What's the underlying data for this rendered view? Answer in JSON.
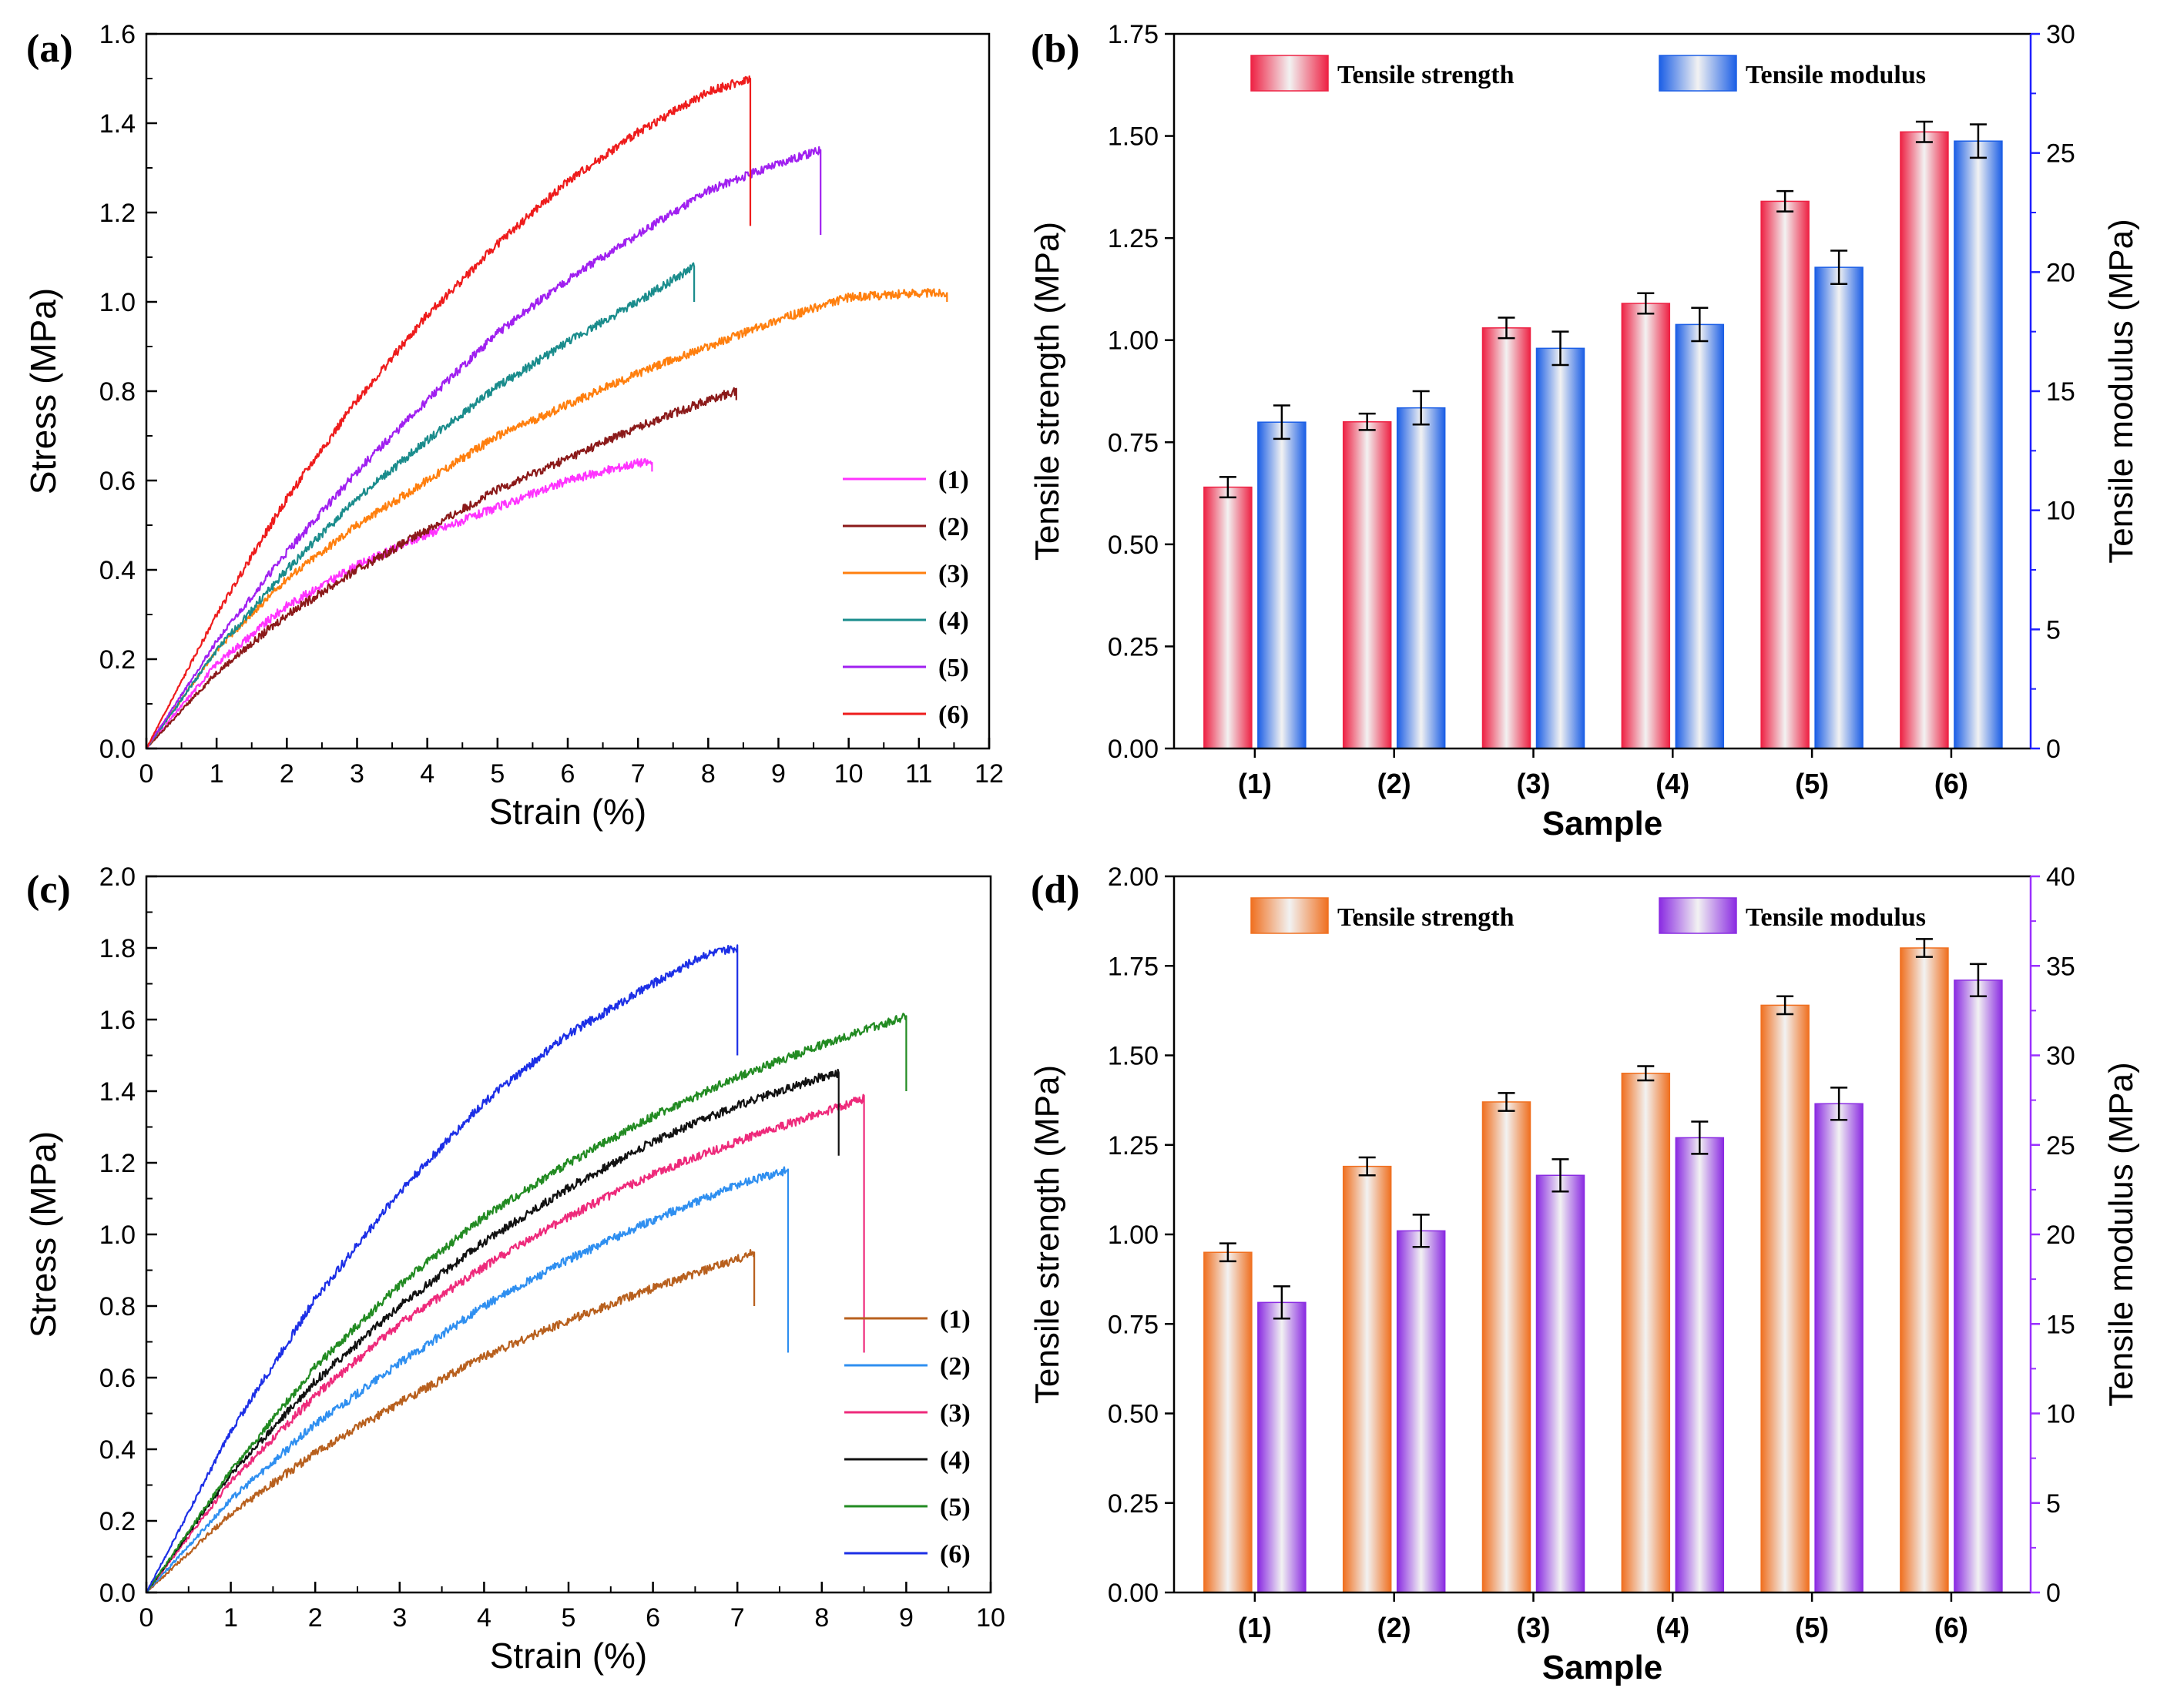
{
  "colors": {
    "axis": "#000000",
    "right_axis_b": "#1f1fff",
    "right_axis_d": "#9b30ff",
    "a_series": [
      "#ff33ff",
      "#8b1a1a",
      "#ff7f0e",
      "#1a8c8c",
      "#a020f0",
      "#ee1c1c"
    ],
    "c_series": [
      "#b8601e",
      "#2f8ff0",
      "#ee2a7b",
      "#111111",
      "#228b22",
      "#1c2fe6"
    ],
    "b_bar1": "#ee2244",
    "b_bar2": "#1c5fe6",
    "d_bar1": "#f07020",
    "d_bar2": "#8a2be2"
  },
  "chart_data": [
    {
      "id": "a",
      "panel_label": "(a)",
      "type": "line",
      "xlabel": "Strain (%)",
      "ylabel": "Stress (MPa)",
      "xlim": [
        0,
        12
      ],
      "ylim": [
        0,
        1.6
      ],
      "xticks": [
        "0",
        "1",
        "2",
        "3",
        "4",
        "5",
        "6",
        "7",
        "8",
        "9",
        "10",
        "11",
        "12"
      ],
      "yticks": [
        "0.0",
        "0.2",
        "0.4",
        "0.6",
        "0.8",
        "1.0",
        "1.2",
        "1.4",
        "1.6"
      ],
      "legend": [
        "(1)",
        "(2)",
        "(3)",
        "(4)",
        "(5)",
        "(6)"
      ],
      "series": [
        {
          "name": "(1)",
          "points": [
            [
              0,
              0
            ],
            [
              1,
              0.19
            ],
            [
              2,
              0.32
            ],
            [
              3,
              0.41
            ],
            [
              4,
              0.48
            ],
            [
              5,
              0.54
            ],
            [
              6,
              0.6
            ],
            [
              7,
              0.64
            ],
            [
              7.2,
              0.64
            ]
          ],
          "drop": 0.62
        },
        {
          "name": "(2)",
          "points": [
            [
              0,
              0
            ],
            [
              1,
              0.17
            ],
            [
              2,
              0.3
            ],
            [
              3,
              0.4
            ],
            [
              4,
              0.49
            ],
            [
              5,
              0.58
            ],
            [
              6,
              0.65
            ],
            [
              7,
              0.72
            ],
            [
              8,
              0.78
            ],
            [
              8.4,
              0.8
            ]
          ],
          "drop": 0.78
        },
        {
          "name": "(3)",
          "points": [
            [
              0,
              0
            ],
            [
              1,
              0.22
            ],
            [
              2,
              0.38
            ],
            [
              3,
              0.5
            ],
            [
              4,
              0.6
            ],
            [
              5,
              0.7
            ],
            [
              6,
              0.77
            ],
            [
              7,
              0.84
            ],
            [
              8,
              0.9
            ],
            [
              9,
              0.96
            ],
            [
              10,
              1.01
            ],
            [
              11,
              1.02
            ],
            [
              11.4,
              1.02
            ]
          ],
          "drop": 1.0
        },
        {
          "name": "(4)",
          "points": [
            [
              0,
              0
            ],
            [
              1,
              0.22
            ],
            [
              2,
              0.4
            ],
            [
              3,
              0.56
            ],
            [
              4,
              0.69
            ],
            [
              5,
              0.81
            ],
            [
              6,
              0.91
            ],
            [
              7,
              1.0
            ],
            [
              7.8,
              1.08
            ]
          ],
          "drop": 1.0
        },
        {
          "name": "(5)",
          "points": [
            [
              0,
              0
            ],
            [
              1,
              0.24
            ],
            [
              2,
              0.44
            ],
            [
              3,
              0.62
            ],
            [
              4,
              0.78
            ],
            [
              5,
              0.93
            ],
            [
              6,
              1.05
            ],
            [
              7,
              1.15
            ],
            [
              8,
              1.25
            ],
            [
              9,
              1.31
            ],
            [
              9.6,
              1.34
            ]
          ],
          "drop": 1.15
        },
        {
          "name": "(6)",
          "points": [
            [
              0,
              0
            ],
            [
              1,
              0.3
            ],
            [
              2,
              0.56
            ],
            [
              3,
              0.78
            ],
            [
              4,
              0.97
            ],
            [
              5,
              1.13
            ],
            [
              6,
              1.27
            ],
            [
              7,
              1.38
            ],
            [
              8,
              1.47
            ],
            [
              8.6,
              1.5
            ]
          ],
          "drop": 1.17
        }
      ]
    },
    {
      "id": "b",
      "panel_label": "(b)",
      "type": "bar",
      "xlabel": "Sample",
      "ylabel": "Tensile strength (MPa)",
      "y2label": "Tensile modulus (MPa)",
      "categories": [
        "(1)",
        "(2)",
        "(3)",
        "(4)",
        "(5)",
        "(6)"
      ],
      "ylim": [
        0,
        1.75
      ],
      "y2lim": [
        0,
        30
      ],
      "yticks": [
        "0.00",
        "0.25",
        "0.50",
        "0.75",
        "1.00",
        "1.25",
        "1.50",
        "1.75"
      ],
      "y2ticks": [
        "0",
        "5",
        "10",
        "15",
        "20",
        "25",
        "30"
      ],
      "series": [
        {
          "name": "Tensile strength",
          "axis": "left",
          "values": [
            0.64,
            0.8,
            1.03,
            1.09,
            1.34,
            1.51
          ],
          "errors": [
            0.025,
            0.02,
            0.025,
            0.025,
            0.025,
            0.025
          ]
        },
        {
          "name": "Tensile modulus",
          "axis": "right",
          "values": [
            13.7,
            14.3,
            16.8,
            17.8,
            20.2,
            25.5
          ],
          "errors": [
            0.7,
            0.7,
            0.7,
            0.7,
            0.7,
            0.7
          ]
        }
      ]
    },
    {
      "id": "c",
      "panel_label": "(c)",
      "type": "line",
      "xlabel": "Strain (%)",
      "ylabel": "Stress (MPa)",
      "xlim": [
        0,
        10
      ],
      "ylim": [
        0,
        2.0
      ],
      "xticks": [
        "0",
        "1",
        "2",
        "3",
        "4",
        "5",
        "6",
        "7",
        "8",
        "9",
        "10"
      ],
      "yticks": [
        "0.0",
        "0.2",
        "0.4",
        "0.6",
        "0.8",
        "1.0",
        "1.2",
        "1.4",
        "1.6",
        "1.8",
        "2.0"
      ],
      "legend": [
        "(1)",
        "(2)",
        "(3)",
        "(4)",
        "(5)",
        "(6)"
      ],
      "series": [
        {
          "name": "(1)",
          "points": [
            [
              0,
              0
            ],
            [
              1,
              0.22
            ],
            [
              2,
              0.39
            ],
            [
              3,
              0.53
            ],
            [
              4,
              0.66
            ],
            [
              5,
              0.76
            ],
            [
              6,
              0.85
            ],
            [
              7,
              0.93
            ],
            [
              7.2,
              0.95
            ]
          ],
          "drop": 0.8
        },
        {
          "name": "(2)",
          "points": [
            [
              0,
              0
            ],
            [
              1,
              0.26
            ],
            [
              2,
              0.47
            ],
            [
              3,
              0.64
            ],
            [
              4,
              0.8
            ],
            [
              5,
              0.93
            ],
            [
              6,
              1.04
            ],
            [
              7,
              1.14
            ],
            [
              7.6,
              1.18
            ]
          ],
          "drop": 0.67
        },
        {
          "name": "(3)",
          "points": [
            [
              0,
              0
            ],
            [
              1,
              0.31
            ],
            [
              2,
              0.55
            ],
            [
              3,
              0.75
            ],
            [
              4,
              0.91
            ],
            [
              5,
              1.05
            ],
            [
              6,
              1.17
            ],
            [
              7,
              1.26
            ],
            [
              8,
              1.34
            ],
            [
              8.5,
              1.38
            ]
          ],
          "drop": 0.67
        },
        {
          "name": "(4)",
          "points": [
            [
              0,
              0
            ],
            [
              1,
              0.33
            ],
            [
              2,
              0.59
            ],
            [
              3,
              0.8
            ],
            [
              4,
              0.98
            ],
            [
              5,
              1.13
            ],
            [
              6,
              1.26
            ],
            [
              7,
              1.36
            ],
            [
              8,
              1.44
            ],
            [
              8.2,
              1.45
            ]
          ],
          "drop": 1.22
        },
        {
          "name": "(5)",
          "points": [
            [
              0,
              0
            ],
            [
              1,
              0.34
            ],
            [
              2,
              0.63
            ],
            [
              3,
              0.86
            ],
            [
              4,
              1.05
            ],
            [
              5,
              1.2
            ],
            [
              6,
              1.33
            ],
            [
              7,
              1.44
            ],
            [
              8,
              1.53
            ],
            [
              9,
              1.61
            ]
          ],
          "drop": 1.4
        },
        {
          "name": "(6)",
          "points": [
            [
              0,
              0
            ],
            [
              1,
              0.45
            ],
            [
              2,
              0.82
            ],
            [
              3,
              1.12
            ],
            [
              4,
              1.37
            ],
            [
              5,
              1.56
            ],
            [
              6,
              1.7
            ],
            [
              6.6,
              1.78
            ],
            [
              7,
              1.8
            ]
          ],
          "drop": 1.5
        }
      ]
    },
    {
      "id": "d",
      "panel_label": "(d)",
      "type": "bar",
      "xlabel": "Sample",
      "ylabel": "Tensile strength (MPa)",
      "y2label": "Tensile modulus (MPa)",
      "categories": [
        "(1)",
        "(2)",
        "(3)",
        "(4)",
        "(5)",
        "(6)"
      ],
      "ylim": [
        0,
        2.0
      ],
      "y2lim": [
        0,
        40
      ],
      "yticks": [
        "0.00",
        "0.25",
        "0.50",
        "0.75",
        "1.00",
        "1.25",
        "1.50",
        "1.75",
        "2.00"
      ],
      "y2ticks": [
        "0",
        "5",
        "10",
        "15",
        "20",
        "25",
        "30",
        "35",
        "40"
      ],
      "series": [
        {
          "name": "Tensile strength",
          "axis": "left",
          "values": [
            0.95,
            1.19,
            1.37,
            1.45,
            1.64,
            1.8
          ],
          "errors": [
            0.025,
            0.025,
            0.025,
            0.02,
            0.025,
            0.025
          ]
        },
        {
          "name": "Tensile modulus",
          "axis": "right",
          "values": [
            16.2,
            20.2,
            23.3,
            25.4,
            27.3,
            34.2
          ],
          "errors": [
            0.9,
            0.9,
            0.9,
            0.9,
            0.9,
            0.9
          ]
        }
      ]
    }
  ]
}
